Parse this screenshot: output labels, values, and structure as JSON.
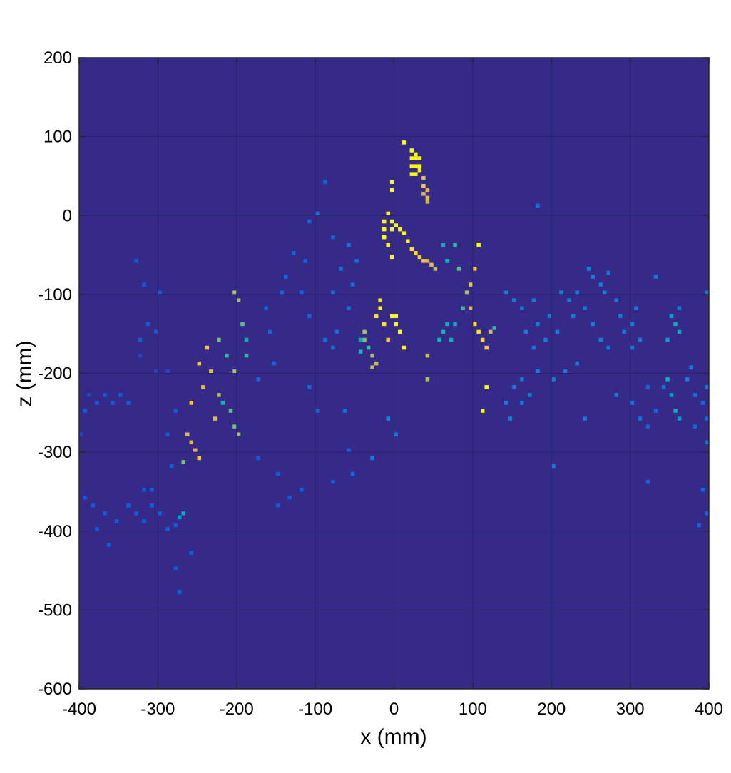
{
  "chart_data": {
    "type": "heatmap",
    "title": "",
    "xlabel": "x (mm)",
    "ylabel": "z (mm)",
    "xlim": [
      -400,
      400
    ],
    "ylim": [
      -600,
      200
    ],
    "xticks": [
      -400,
      -300,
      -200,
      -100,
      0,
      100,
      200,
      300,
      400
    ],
    "yticks": [
      -600,
      -500,
      -400,
      -300,
      -200,
      -100,
      0,
      100,
      200
    ],
    "xtick_labels": [
      "-400",
      "-300",
      "-200",
      "-100",
      "0",
      "100",
      "200",
      "300",
      "400"
    ],
    "ytick_labels": [
      "-600",
      "-500",
      "-400",
      "-300",
      "-200",
      "-100",
      "0",
      "100",
      "200"
    ],
    "grid": true,
    "colormap": "parula",
    "background_color": "#352a87",
    "cell_size_mm": [
      5,
      5
    ],
    "value_range": [
      0,
      1
    ],
    "cells": [
      [
        10,
        90,
        1.0
      ],
      [
        20,
        80,
        1.0
      ],
      [
        25,
        75,
        1.0
      ],
      [
        20,
        70,
        1.0
      ],
      [
        25,
        70,
        1.0
      ],
      [
        30,
        70,
        1.0
      ],
      [
        20,
        60,
        1.0
      ],
      [
        25,
        60,
        1.0
      ],
      [
        30,
        60,
        1.0
      ],
      [
        20,
        50,
        1.0
      ],
      [
        25,
        50,
        1.0
      ],
      [
        30,
        55,
        0.95
      ],
      [
        35,
        45,
        0.85
      ],
      [
        35,
        35,
        0.9
      ],
      [
        40,
        30,
        0.85
      ],
      [
        35,
        25,
        0.85
      ],
      [
        40,
        20,
        0.85
      ],
      [
        40,
        15,
        0.8
      ],
      [
        -5,
        40,
        1.0
      ],
      [
        -5,
        30,
        1.0
      ],
      [
        -10,
        0,
        1.0
      ],
      [
        -15,
        -10,
        1.0
      ],
      [
        -15,
        -20,
        1.0
      ],
      [
        -15,
        -30,
        1.0
      ],
      [
        -5,
        -10,
        1.0
      ],
      [
        -5,
        -20,
        1.0
      ],
      [
        -10,
        -40,
        1.0
      ],
      [
        -5,
        -55,
        1.0
      ],
      [
        0,
        -15,
        1.0
      ],
      [
        5,
        -20,
        1.0
      ],
      [
        10,
        -25,
        1.0
      ],
      [
        15,
        -35,
        1.0
      ],
      [
        20,
        -45,
        0.95
      ],
      [
        25,
        -50,
        0.95
      ],
      [
        30,
        -55,
        0.9
      ],
      [
        35,
        -60,
        0.9
      ],
      [
        40,
        -60,
        0.85
      ],
      [
        45,
        -65,
        0.85
      ],
      [
        50,
        -70,
        0.8
      ],
      [
        -40,
        -150,
        0.75
      ],
      [
        -40,
        -160,
        0.7
      ],
      [
        -35,
        -170,
        0.6
      ],
      [
        -30,
        -180,
        0.75
      ],
      [
        -25,
        -190,
        0.8
      ],
      [
        -25,
        -130,
        0.95
      ],
      [
        -20,
        -110,
        0.95
      ],
      [
        -20,
        -120,
        1.0
      ],
      [
        -15,
        -140,
        0.95
      ],
      [
        -10,
        -160,
        0.9
      ],
      [
        -5,
        -130,
        1.0
      ],
      [
        0,
        -130,
        1.0
      ],
      [
        0,
        -140,
        1.0
      ],
      [
        5,
        -150,
        1.0
      ],
      [
        10,
        -170,
        1.0
      ],
      [
        -45,
        -160,
        0.5
      ],
      [
        -45,
        -175,
        0.55
      ],
      [
        -30,
        -195,
        0.8
      ],
      [
        40,
        -180,
        0.8
      ],
      [
        40,
        -210,
        0.75
      ],
      [
        55,
        -160,
        0.55
      ],
      [
        60,
        -150,
        0.55
      ],
      [
        65,
        -140,
        0.5
      ],
      [
        70,
        -160,
        0.55
      ],
      [
        75,
        -140,
        0.5
      ],
      [
        85,
        -120,
        0.6
      ],
      [
        90,
        -100,
        0.75
      ],
      [
        95,
        -120,
        0.85
      ],
      [
        100,
        -140,
        0.95
      ],
      [
        105,
        -150,
        0.95
      ],
      [
        110,
        -160,
        0.95
      ],
      [
        115,
        -170,
        0.9
      ],
      [
        120,
        -150,
        0.8
      ],
      [
        125,
        -145,
        0.6
      ],
      [
        60,
        -40,
        0.5
      ],
      [
        65,
        -60,
        0.55
      ],
      [
        75,
        -40,
        0.6
      ],
      [
        80,
        -70,
        0.65
      ],
      [
        100,
        -70,
        0.9
      ],
      [
        105,
        -40,
        1.0
      ],
      [
        95,
        -90,
        0.9
      ],
      [
        110,
        -250,
        1.0
      ],
      [
        115,
        -220,
        1.0
      ],
      [
        -260,
        -290,
        0.85
      ],
      [
        -265,
        -280,
        0.85
      ],
      [
        -255,
        -300,
        0.85
      ],
      [
        -250,
        -310,
        0.9
      ],
      [
        -270,
        -315,
        0.7
      ],
      [
        -260,
        -240,
        0.9
      ],
      [
        -245,
        -220,
        0.85
      ],
      [
        -240,
        -170,
        0.9
      ],
      [
        -235,
        -200,
        0.85
      ],
      [
        -225,
        -230,
        0.8
      ],
      [
        -230,
        -260,
        0.85
      ],
      [
        -250,
        -190,
        0.9
      ],
      [
        -225,
        -160,
        0.7
      ],
      [
        -215,
        -180,
        0.6
      ],
      [
        -205,
        -200,
        0.75
      ],
      [
        -205,
        -100,
        0.75
      ],
      [
        -200,
        -110,
        0.75
      ],
      [
        -195,
        -140,
        0.65
      ],
      [
        -190,
        -160,
        0.55
      ],
      [
        -190,
        -180,
        0.6
      ],
      [
        -210,
        -250,
        0.65
      ],
      [
        -205,
        -270,
        0.7
      ],
      [
        -200,
        -280,
        0.75
      ],
      [
        -220,
        -240,
        0.55
      ],
      [
        -270,
        -380,
        0.5
      ],
      [
        -275,
        -385,
        0.45
      ],
      [
        350,
        -130,
        0.45
      ],
      [
        355,
        -140,
        0.5
      ],
      [
        345,
        -160,
        0.45
      ],
      [
        345,
        -210,
        0.5
      ],
      [
        350,
        -230,
        0.45
      ],
      [
        355,
        -250,
        0.5
      ],
      [
        360,
        -260,
        0.45
      ],
      [
        360,
        -150,
        0.5
      ],
      [
        -130,
        -50,
        0.2
      ],
      [
        -115,
        -60,
        0.2
      ],
      [
        -110,
        -10,
        0.2
      ],
      [
        -100,
        0,
        0.25
      ],
      [
        -90,
        40,
        0.2
      ],
      [
        -145,
        -100,
        0.2
      ],
      [
        -140,
        -80,
        0.2
      ],
      [
        -120,
        -100,
        0.2
      ],
      [
        -110,
        -130,
        0.2
      ],
      [
        -165,
        -120,
        0.2
      ],
      [
        -160,
        -150,
        0.2
      ],
      [
        -155,
        -190,
        0.2
      ],
      [
        -175,
        -210,
        0.2
      ],
      [
        -110,
        -220,
        0.2
      ],
      [
        -100,
        -250,
        0.2
      ],
      [
        -90,
        -160,
        0.25
      ],
      [
        -80,
        -170,
        0.25
      ],
      [
        -75,
        -150,
        0.25
      ],
      [
        -60,
        -120,
        0.25
      ],
      [
        -55,
        -90,
        0.25
      ],
      [
        -70,
        -70,
        0.25
      ],
      [
        -80,
        -100,
        0.25
      ],
      [
        -50,
        -60,
        0.25
      ],
      [
        -60,
        -40,
        0.25
      ],
      [
        -80,
        -30,
        0.2
      ],
      [
        -65,
        -250,
        0.25
      ],
      [
        -60,
        -300,
        0.2
      ],
      [
        -80,
        -340,
        0.2
      ],
      [
        -120,
        -350,
        0.15
      ],
      [
        -150,
        -330,
        0.15
      ],
      [
        -175,
        -310,
        0.15
      ],
      [
        -150,
        -370,
        0.15
      ],
      [
        -135,
        -360,
        0.15
      ],
      [
        -300,
        -100,
        0.15
      ],
      [
        -320,
        -90,
        0.15
      ],
      [
        -330,
        -60,
        0.15
      ],
      [
        -315,
        -140,
        0.15
      ],
      [
        -325,
        -160,
        0.15
      ],
      [
        -305,
        -150,
        0.15
      ],
      [
        -325,
        -180,
        0.1
      ],
      [
        -305,
        -200,
        0.1
      ],
      [
        -290,
        -200,
        0.1
      ],
      [
        -280,
        -250,
        0.15
      ],
      [
        -290,
        -280,
        0.15
      ],
      [
        -285,
        -320,
        0.15
      ],
      [
        -370,
        -230,
        0.15
      ],
      [
        -380,
        -240,
        0.15
      ],
      [
        -360,
        -240,
        0.15
      ],
      [
        -350,
        -230,
        0.15
      ],
      [
        -390,
        -230,
        0.1
      ],
      [
        -395,
        -250,
        0.15
      ],
      [
        -400,
        -280,
        0.1
      ],
      [
        -340,
        -240,
        0.15
      ],
      [
        -395,
        -360,
        0.15
      ],
      [
        -385,
        -370,
        0.15
      ],
      [
        -370,
        -380,
        0.15
      ],
      [
        -355,
        -390,
        0.15
      ],
      [
        -340,
        -370,
        0.15
      ],
      [
        -330,
        -380,
        0.15
      ],
      [
        -320,
        -390,
        0.15
      ],
      [
        -310,
        -370,
        0.15
      ],
      [
        -300,
        -380,
        0.15
      ],
      [
        -290,
        -400,
        0.15
      ],
      [
        -280,
        -395,
        0.15
      ],
      [
        -310,
        -350,
        0.15
      ],
      [
        -320,
        -350,
        0.15
      ],
      [
        -380,
        -400,
        0.15
      ],
      [
        -365,
        -420,
        0.15
      ],
      [
        -280,
        -450,
        0.15
      ],
      [
        -275,
        -480,
        0.15
      ],
      [
        -260,
        -430,
        0.15
      ],
      [
        -10,
        -260,
        0.35
      ],
      [
        0,
        -280,
        0.3
      ],
      [
        -30,
        -310,
        0.3
      ],
      [
        -55,
        -330,
        0.25
      ],
      [
        140,
        -100,
        0.3
      ],
      [
        150,
        -110,
        0.3
      ],
      [
        160,
        -120,
        0.3
      ],
      [
        175,
        -110,
        0.3
      ],
      [
        180,
        -140,
        0.3
      ],
      [
        165,
        -150,
        0.3
      ],
      [
        175,
        -170,
        0.3
      ],
      [
        190,
        -160,
        0.3
      ],
      [
        195,
        -130,
        0.3
      ],
      [
        205,
        -150,
        0.3
      ],
      [
        210,
        -100,
        0.3
      ],
      [
        220,
        -110,
        0.3
      ],
      [
        225,
        -130,
        0.3
      ],
      [
        230,
        -100,
        0.3
      ],
      [
        240,
        -120,
        0.3
      ],
      [
        245,
        -70,
        0.3
      ],
      [
        250,
        -80,
        0.3
      ],
      [
        260,
        -90,
        0.3
      ],
      [
        265,
        -100,
        0.3
      ],
      [
        270,
        -75,
        0.3
      ],
      [
        280,
        -110,
        0.3
      ],
      [
        285,
        -130,
        0.3
      ],
      [
        290,
        -150,
        0.3
      ],
      [
        300,
        -140,
        0.3
      ],
      [
        305,
        -120,
        0.3
      ],
      [
        300,
        -170,
        0.3
      ],
      [
        310,
        -160,
        0.3
      ],
      [
        330,
        -80,
        0.3
      ],
      [
        250,
        -140,
        0.3
      ],
      [
        260,
        -160,
        0.3
      ],
      [
        270,
        -170,
        0.3
      ],
      [
        230,
        -190,
        0.3
      ],
      [
        215,
        -200,
        0.3
      ],
      [
        200,
        -210,
        0.3
      ],
      [
        180,
        -200,
        0.3
      ],
      [
        160,
        -210,
        0.3
      ],
      [
        150,
        -220,
        0.3
      ],
      [
        140,
        -240,
        0.3
      ],
      [
        145,
        -260,
        0.3
      ],
      [
        160,
        -240,
        0.3
      ],
      [
        170,
        -230,
        0.3
      ],
      [
        200,
        -320,
        0.3
      ],
      [
        240,
        -260,
        0.3
      ],
      [
        280,
        -230,
        0.3
      ],
      [
        300,
        -240,
        0.25
      ],
      [
        310,
        -260,
        0.25
      ],
      [
        320,
        -270,
        0.2
      ],
      [
        330,
        -250,
        0.2
      ],
      [
        340,
        -220,
        0.25
      ],
      [
        370,
        -210,
        0.3
      ],
      [
        375,
        -195,
        0.3
      ],
      [
        380,
        -230,
        0.25
      ],
      [
        390,
        -240,
        0.2
      ],
      [
        395,
        -260,
        0.2
      ],
      [
        380,
        -270,
        0.2
      ],
      [
        395,
        -220,
        0.25
      ],
      [
        395,
        -290,
        0.25
      ],
      [
        390,
        -350,
        0.2
      ],
      [
        395,
        -380,
        0.2
      ],
      [
        385,
        -395,
        0.2
      ],
      [
        395,
        -100,
        0.25
      ],
      [
        360,
        -120,
        0.3
      ],
      [
        320,
        -340,
        0.2
      ],
      [
        180,
        10,
        0.25
      ],
      [
        320,
        -220,
        0.2
      ]
    ]
  }
}
